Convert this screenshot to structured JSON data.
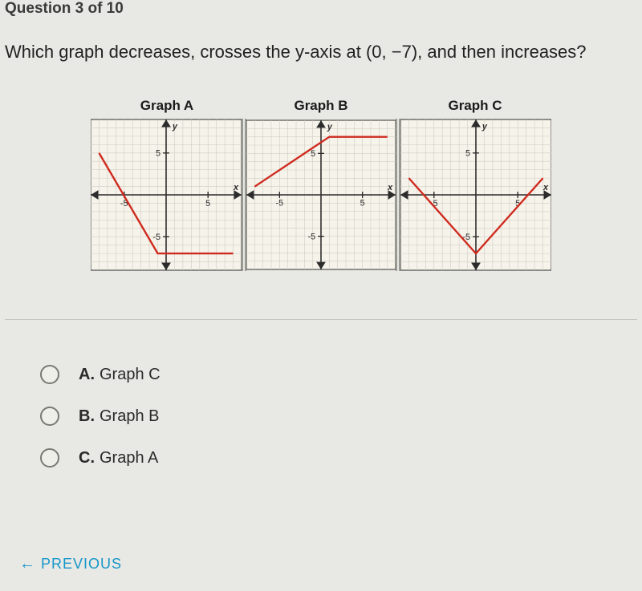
{
  "header": "Question 3 of 10",
  "question": "Which graph decreases, crosses the y-axis at (0, −7), and then increases?",
  "graph_style": {
    "size": 190,
    "range": [
      -9,
      9
    ],
    "tick_step": 1,
    "major_tick": 5,
    "bg_color": "#f6f3ea",
    "grid_color": "#d0cdc5",
    "axis_color": "#2b2b2b",
    "line_color": "#cf2a1e",
    "line_width": 2.4,
    "axis_label_font": 11,
    "tick_label_font": 11,
    "axis_labels": {
      "x": "x",
      "y": "y"
    }
  },
  "graphs": [
    {
      "title": "Graph A",
      "polyline": [
        [
          -8,
          5
        ],
        [
          -1,
          -7
        ],
        [
          8,
          -7
        ]
      ]
    },
    {
      "title": "Graph B",
      "polyline": [
        [
          -8,
          1
        ],
        [
          1,
          7
        ],
        [
          8,
          7
        ]
      ]
    },
    {
      "title": "Graph C",
      "polyline": [
        [
          -8,
          2
        ],
        [
          0,
          -7
        ],
        [
          8,
          2
        ]
      ]
    }
  ],
  "options": [
    {
      "letter": "A.",
      "text": "Graph C"
    },
    {
      "letter": "B.",
      "text": "Graph B"
    },
    {
      "letter": "C.",
      "text": "Graph A"
    }
  ],
  "previous": "PREVIOUS",
  "colors": {
    "link": "#1697c9"
  }
}
